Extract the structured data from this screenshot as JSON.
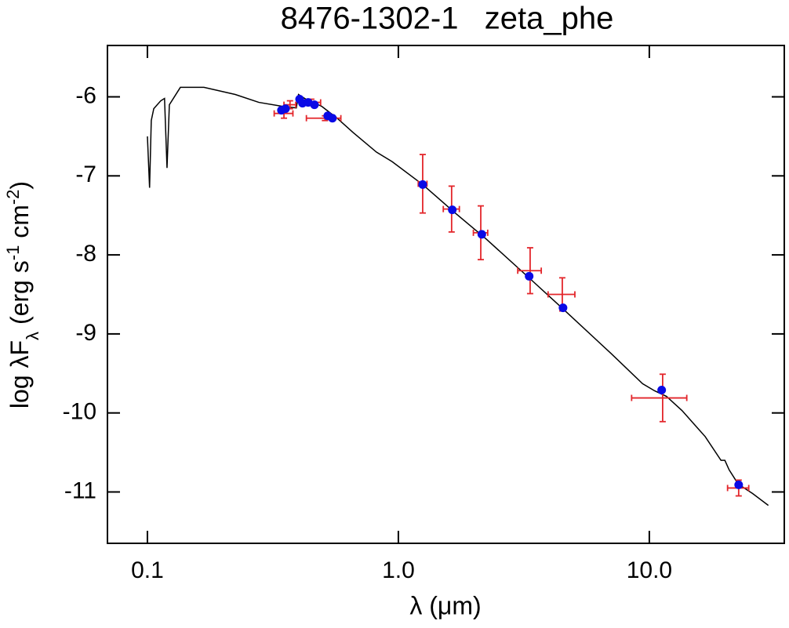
{
  "chart_data": {
    "type": "scatter",
    "title": "8476-1302-1   zeta_phe",
    "x_label": "λ (μm)",
    "y_label": [
      {
        "text": "log λF"
      },
      {
        "text": "λ",
        "script": "sub"
      },
      {
        "text": " (erg s"
      },
      {
        "text": "-1",
        "script": "super"
      },
      {
        "text": " cm"
      },
      {
        "text": "-2",
        "script": "super"
      },
      {
        "text": ")"
      }
    ],
    "xscale": "log",
    "xlim": [
      0.0693,
      34.5
    ],
    "ylim": [
      -11.65,
      -5.35
    ],
    "xticks": [
      0.1,
      {
        "value": 1,
        "label": "1.0"
      },
      {
        "value": 10,
        "label": "10.0"
      }
    ],
    "yticks": [
      -6,
      -7,
      -8,
      -9,
      -10,
      -11
    ],
    "series": [
      {
        "type": "line",
        "color": "#000000",
        "x": [
          0.1,
          0.102,
          0.1036,
          0.106,
          0.113,
          0.117,
          0.1197,
          0.1223,
          0.1353,
          0.168,
          0.2239,
          0.278,
          0.345,
          0.392,
          0.4,
          0.428,
          0.495,
          0.57,
          0.659,
          0.818,
          0.944,
          1.25,
          1.67,
          2.24,
          3.45,
          4.59,
          7.05,
          9.4,
          10.5,
          11.7,
          13.5,
          16.7,
          19.3,
          20.0,
          20.8,
          22.6,
          25.8,
          29.8
        ],
        "y": [
          -6.5,
          -7.15,
          -6.3,
          -6.15,
          -6.05,
          -6.02,
          -6.9,
          -6.1,
          -5.88,
          -5.88,
          -5.97,
          -6.07,
          -6.12,
          -6.14,
          -5.97,
          -6.03,
          -6.12,
          -6.27,
          -6.45,
          -6.7,
          -6.82,
          -7.11,
          -7.46,
          -7.8,
          -8.34,
          -8.7,
          -9.25,
          -9.63,
          -9.72,
          -9.79,
          -9.97,
          -10.3,
          -10.6,
          -10.6,
          -10.72,
          -10.9,
          -11.02,
          -11.17
        ]
      },
      {
        "type": "errorbar",
        "color": "#e3262b",
        "x": [
          0.35,
          0.37,
          0.45,
          0.51,
          1.25,
          1.63,
          2.13,
          3.35,
          4.5,
          11.3,
          22.7
        ],
        "y": [
          -6.21,
          -6.1,
          -6.07,
          -6.27,
          -7.1,
          -7.42,
          -7.72,
          -8.2,
          -8.5,
          -9.81,
          -10.95
        ],
        "xerr": [
          0.03,
          0.02,
          0.04,
          0.08,
          0.05,
          0.12,
          0.14,
          0.36,
          0.55,
          2.8,
          2.2
        ],
        "yerr": [
          0.06,
          0.05,
          0.04,
          0.03,
          0.37,
          0.29,
          0.34,
          0.29,
          0.21,
          0.3,
          0.1
        ]
      },
      {
        "type": "scatter",
        "color": "#0a0ae6",
        "x": [
          0.342,
          0.355,
          0.404,
          0.415,
          0.437,
          0.463,
          0.523,
          0.546,
          1.25,
          1.64,
          2.15,
          3.32,
          4.53,
          11.2,
          22.7
        ],
        "y": [
          -6.17,
          -6.15,
          -6.03,
          -6.08,
          -6.07,
          -6.1,
          -6.24,
          -6.27,
          -7.11,
          -7.43,
          -7.74,
          -8.27,
          -8.67,
          -9.71,
          -10.91
        ]
      }
    ]
  }
}
